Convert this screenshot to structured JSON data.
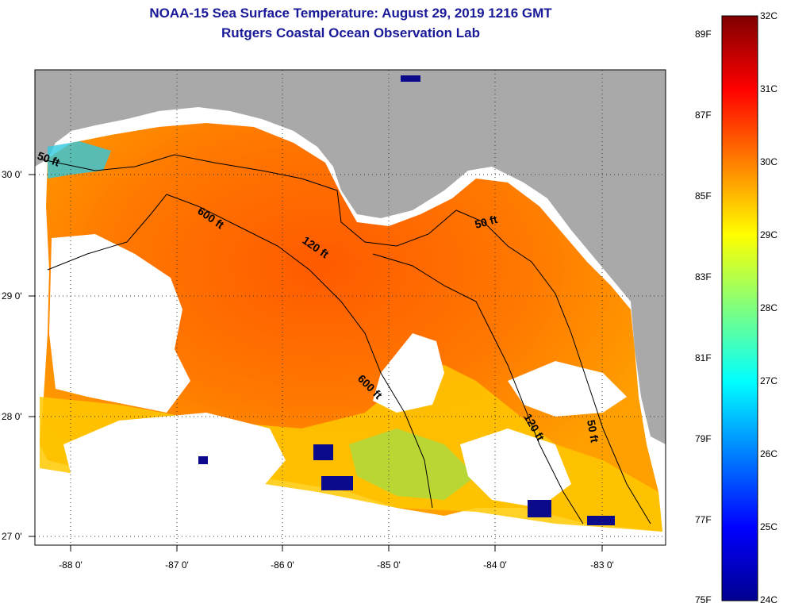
{
  "title_line1": "NOAA-15 Sea Surface Temperature:  August 29, 2019 1216 GMT",
  "title_line2": "Rutgers Coastal Ocean Observation Lab",
  "axes": {
    "lat_labels": [
      "30 0'",
      "29 0'",
      "28 0'",
      "27 0'"
    ],
    "lon_labels": [
      "-88 0'",
      "-87 0'",
      "-86 0'",
      "-85 0'",
      "-84 0'",
      "-83 0'"
    ]
  },
  "contours": {
    "ft50_west": "50 ft",
    "ft600_north": "600 ft",
    "ft120_north": "120 ft",
    "ft50_east": "50 ft",
    "ft600_south": "600 ft",
    "ft120_south": "120 ft",
    "ft50_south": "50 ft"
  },
  "colorbar": {
    "celsius": [
      "32C",
      "31C",
      "30C",
      "29C",
      "28C",
      "27C",
      "26C",
      "25C",
      "24C"
    ],
    "fahrenheit": [
      "89F",
      "87F",
      "85F",
      "83F",
      "81F",
      "79F",
      "77F",
      "75F"
    ]
  },
  "colors": {
    "land": "#a9a9a9",
    "cloud": "#ffffff",
    "title": "#1a1a99",
    "sst_warm": "#ff6a00",
    "sst_mid": "#ffb000"
  }
}
